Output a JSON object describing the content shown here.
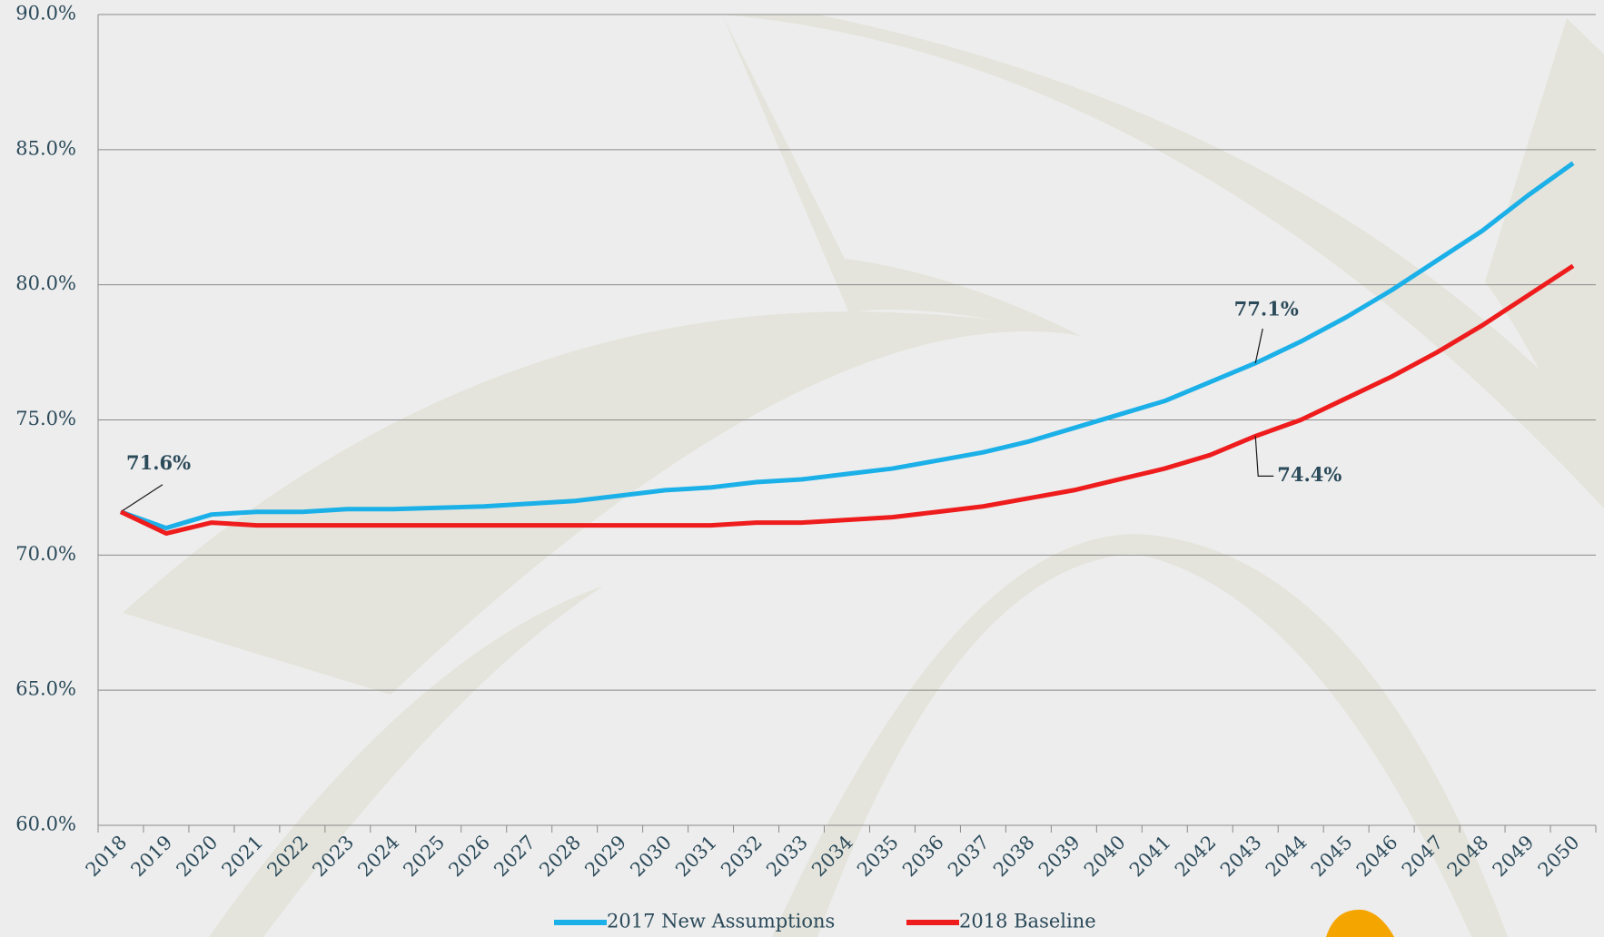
{
  "chart_data": {
    "type": "line",
    "categories": [
      "2018",
      "2019",
      "2020",
      "2021",
      "2022",
      "2023",
      "2024",
      "2025",
      "2026",
      "2027",
      "2028",
      "2029",
      "2030",
      "2031",
      "2032",
      "2033",
      "2034",
      "2035",
      "2036",
      "2037",
      "2038",
      "2039",
      "2040",
      "2041",
      "2042",
      "2043",
      "2044",
      "2045",
      "2046",
      "2047",
      "2048",
      "2049",
      "2050"
    ],
    "series": [
      {
        "name": "2017 New Assumptions",
        "color": "#1cb0e8",
        "values": [
          71.6,
          71.0,
          71.5,
          71.6,
          71.6,
          71.7,
          71.7,
          71.75,
          71.8,
          71.9,
          72.0,
          72.2,
          72.4,
          72.5,
          72.7,
          72.8,
          73.0,
          73.2,
          73.5,
          73.8,
          74.2,
          74.7,
          75.2,
          75.7,
          76.4,
          77.1,
          77.9,
          78.8,
          79.8,
          80.9,
          82.0,
          83.3,
          84.5
        ],
        "value_labels": [
          "71.6%",
          null,
          null,
          null,
          null,
          null,
          null,
          null,
          null,
          null,
          null,
          null,
          null,
          null,
          null,
          null,
          null,
          null,
          null,
          null,
          null,
          null,
          null,
          null,
          null,
          "77.1%",
          null,
          null,
          null,
          null,
          null,
          null,
          null
        ]
      },
      {
        "name": "2018 Baseline",
        "color": "#ee1c1c",
        "values": [
          71.6,
          70.8,
          71.2,
          71.1,
          71.1,
          71.1,
          71.1,
          71.1,
          71.1,
          71.1,
          71.1,
          71.1,
          71.1,
          71.1,
          71.2,
          71.2,
          71.3,
          71.4,
          71.6,
          71.8,
          72.1,
          72.4,
          72.8,
          73.2,
          73.7,
          74.4,
          75.0,
          75.8,
          76.6,
          77.5,
          78.5,
          79.6,
          80.7
        ],
        "value_labels": [
          null,
          null,
          null,
          null,
          null,
          null,
          null,
          null,
          null,
          null,
          null,
          null,
          null,
          null,
          null,
          null,
          null,
          null,
          null,
          null,
          null,
          null,
          null,
          null,
          null,
          "74.4%",
          null,
          null,
          null,
          null,
          null,
          null,
          null
        ]
      }
    ],
    "ylim": [
      60,
      90
    ],
    "yticks": [
      {
        "value": 60,
        "label": "60.0%"
      },
      {
        "value": 65,
        "label": "65.0%"
      },
      {
        "value": 70,
        "label": "70.0%"
      },
      {
        "value": 75,
        "label": "75.0%"
      },
      {
        "value": 80,
        "label": "80.0%"
      },
      {
        "value": 85,
        "label": "85.0%"
      },
      {
        "value": 90,
        "label": "90.0%"
      }
    ],
    "grid": true,
    "legend": "bottom"
  }
}
